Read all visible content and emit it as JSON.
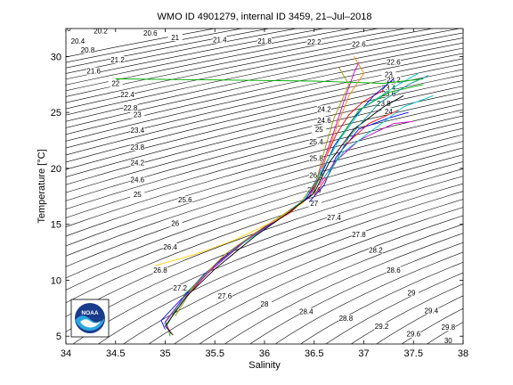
{
  "chart_data": {
    "type": "line",
    "title": "WMO ID 4901279, internal ID 3459, 21–Jul–2018",
    "xlabel": "Salinity",
    "ylabel": "Temperature [°C]",
    "xlim": [
      34,
      38
    ],
    "ylim": [
      4.3,
      32.5
    ],
    "xticks": [
      34,
      34.5,
      35,
      35.5,
      36,
      36.5,
      37,
      37.5,
      38
    ],
    "yticks": [
      5,
      10,
      15,
      20,
      25,
      30
    ],
    "grid": false,
    "legend": "none",
    "density_contours": {
      "levels": [
        20.2,
        20.4,
        20.6,
        20.8,
        21,
        21.2,
        21.4,
        21.6,
        21.8,
        22,
        22.2,
        22.4,
        22.6,
        22.8,
        23,
        23.2,
        23.4,
        23.6,
        23.8,
        24,
        24.2,
        24.4,
        24.6,
        24.8,
        25,
        25.2,
        25.4,
        25.6,
        25.8,
        26,
        26.2,
        26.4,
        26.6,
        26.8,
        27,
        27.2,
        27.4,
        27.6,
        27.8,
        28,
        28.2,
        28.4,
        28.6,
        28.8,
        29,
        29.2,
        29.4,
        29.6,
        29.8,
        30
      ],
      "labels": [
        {
          "text": "0",
          "s": 34.03,
          "t": 32.5
        },
        {
          "text": "20.2",
          "s": 34.35,
          "t": 32.3
        },
        {
          "text": "20.6",
          "s": 34.85,
          "t": 32.1
        },
        {
          "text": "21",
          "s": 35.1,
          "t": 31.7
        },
        {
          "text": "21.4",
          "s": 35.55,
          "t": 31.5
        },
        {
          "text": "21.8",
          "s": 36.0,
          "t": 31.4
        },
        {
          "text": "22.2",
          "s": 36.5,
          "t": 31.3
        },
        {
          "text": "22.6",
          "s": 36.95,
          "t": 31.1
        },
        {
          "text": "20.4",
          "s": 34.12,
          "t": 31.4
        },
        {
          "text": "20.8",
          "s": 34.22,
          "t": 30.6
        },
        {
          "text": "21.2",
          "s": 34.52,
          "t": 29.7
        },
        {
          "text": "21.6",
          "s": 34.28,
          "t": 28.7
        },
        {
          "text": "22",
          "s": 34.5,
          "t": 27.6
        },
        {
          "text": "22.4",
          "s": 34.62,
          "t": 26.6
        },
        {
          "text": "22.8",
          "s": 34.65,
          "t": 25.4
        },
        {
          "text": "23",
          "s": 34.72,
          "t": 24.8
        },
        {
          "text": "23.4",
          "s": 34.72,
          "t": 23.4
        },
        {
          "text": "23.8",
          "s": 34.72,
          "t": 21.9
        },
        {
          "text": "24.2",
          "s": 34.72,
          "t": 20.5
        },
        {
          "text": "24.6",
          "s": 34.72,
          "t": 19.0
        },
        {
          "text": "25",
          "s": 34.72,
          "t": 17.7
        },
        {
          "text": "25.6",
          "s": 35.2,
          "t": 17.2
        },
        {
          "text": "26",
          "s": 35.1,
          "t": 15.1
        },
        {
          "text": "26.4",
          "s": 35.05,
          "t": 13.0
        },
        {
          "text": "26.8",
          "s": 34.95,
          "t": 10.9
        },
        {
          "text": "27.2",
          "s": 35.15,
          "t": 9.3
        },
        {
          "text": "27.6",
          "s": 35.6,
          "t": 8.6
        },
        {
          "text": "28",
          "s": 36.0,
          "t": 7.9
        },
        {
          "text": "28.4",
          "s": 36.42,
          "t": 7.2
        },
        {
          "text": "28.8",
          "s": 36.82,
          "t": 6.6
        },
        {
          "text": "29.2",
          "s": 37.18,
          "t": 5.9
        },
        {
          "text": "29.6",
          "s": 37.5,
          "t": 5.2
        },
        {
          "text": "30",
          "s": 37.85,
          "t": 4.6
        },
        {
          "text": "29.8",
          "s": 37.85,
          "t": 5.8
        },
        {
          "text": "29.4",
          "s": 37.68,
          "t": 7.3
        },
        {
          "text": "29",
          "s": 37.48,
          "t": 8.9
        },
        {
          "text": "28.6",
          "s": 37.3,
          "t": 10.9
        },
        {
          "text": "28.2",
          "s": 37.12,
          "t": 12.7
        },
        {
          "text": "27.8",
          "s": 36.95,
          "t": 14.1
        },
        {
          "text": "27.4",
          "s": 36.7,
          "t": 15.6
        },
        {
          "text": "27",
          "s": 36.5,
          "t": 16.9
        },
        {
          "text": "26.6",
          "s": 36.5,
          "t": 18.1
        },
        {
          "text": "26.2",
          "s": 36.52,
          "t": 19.4
        },
        {
          "text": "25.8",
          "s": 36.52,
          "t": 20.9
        },
        {
          "text": "25.4",
          "s": 36.52,
          "t": 22.4
        },
        {
          "text": "25",
          "s": 36.55,
          "t": 23.5
        },
        {
          "text": "24.6",
          "s": 36.6,
          "t": 24.3
        },
        {
          "text": "24.2",
          "s": 36.6,
          "t": 25.3
        },
        {
          "text": "23.8",
          "s": 37.2,
          "t": 25.8
        },
        {
          "text": "23.4",
          "s": 37.25,
          "t": 27.2
        },
        {
          "text": "23",
          "s": 37.25,
          "t": 28.4
        },
        {
          "text": "23.6",
          "s": 37.25,
          "t": 26.7
        },
        {
          "text": "24",
          "s": 37.25,
          "t": 25.1
        },
        {
          "text": "22.6",
          "s": 37.3,
          "t": 29.5
        },
        {
          "text": "23.2",
          "s": 37.3,
          "t": 27.9
        }
      ]
    },
    "series": [
      {
        "color": "#ff0000",
        "points": [
          [
            35.06,
            5.2
          ],
          [
            35.0,
            6.2
          ],
          [
            35.12,
            7.6
          ],
          [
            35.28,
            9.2
          ],
          [
            35.55,
            11.8
          ],
          [
            35.9,
            14.2
          ],
          [
            36.25,
            16.0
          ],
          [
            36.45,
            17.5
          ],
          [
            36.55,
            19.0
          ],
          [
            36.62,
            21.0
          ],
          [
            36.72,
            23.0
          ],
          [
            36.85,
            24.8
          ],
          [
            37.0,
            26.0
          ],
          [
            37.2,
            27.0
          ]
        ]
      },
      {
        "color": "#0000ff",
        "points": [
          [
            35.0,
            5.6
          ],
          [
            34.96,
            6.4
          ],
          [
            35.15,
            8.2
          ],
          [
            35.4,
            10.6
          ],
          [
            35.75,
            13.2
          ],
          [
            36.15,
            15.6
          ],
          [
            36.42,
            17.3
          ],
          [
            36.58,
            19.6
          ],
          [
            36.7,
            22.0
          ],
          [
            36.9,
            24.5
          ],
          [
            37.1,
            26.5
          ],
          [
            37.3,
            28.0
          ]
        ]
      },
      {
        "color": "#00aa00",
        "points": [
          [
            35.05,
            5.0
          ],
          [
            35.02,
            6.0
          ],
          [
            35.2,
            8.8
          ],
          [
            35.5,
            11.2
          ],
          [
            35.85,
            13.8
          ],
          [
            36.2,
            15.8
          ],
          [
            36.48,
            17.6
          ],
          [
            36.6,
            20.2
          ],
          [
            36.78,
            23.0
          ],
          [
            36.95,
            25.2
          ],
          [
            37.25,
            26.8
          ],
          [
            37.6,
            27.5
          ]
        ]
      },
      {
        "color": "#00cccc",
        "points": [
          [
            34.98,
            6.0
          ],
          [
            35.1,
            7.4
          ],
          [
            35.35,
            10.0
          ],
          [
            35.7,
            12.8
          ],
          [
            36.1,
            15.2
          ],
          [
            36.4,
            17.2
          ],
          [
            36.55,
            19.4
          ],
          [
            36.75,
            22.5
          ],
          [
            37.0,
            25.5
          ],
          [
            37.35,
            27.5
          ],
          [
            37.55,
            28.5
          ]
        ]
      },
      {
        "color": "#cc00cc",
        "points": [
          [
            35.04,
            5.4
          ],
          [
            35.0,
            6.3
          ],
          [
            35.18,
            8.4
          ],
          [
            35.45,
            10.8
          ],
          [
            35.8,
            13.5
          ],
          [
            36.18,
            15.7
          ],
          [
            36.45,
            17.4
          ],
          [
            36.56,
            19.8
          ],
          [
            36.68,
            22.8
          ],
          [
            36.8,
            26.0
          ],
          [
            36.9,
            28.5
          ],
          [
            36.95,
            29.5
          ]
        ]
      },
      {
        "color": "#999900",
        "points": [
          [
            35.1,
            6.8
          ],
          [
            35.3,
            9.6
          ],
          [
            35.6,
            12.3
          ],
          [
            36.0,
            14.8
          ],
          [
            36.35,
            16.8
          ],
          [
            36.52,
            18.8
          ],
          [
            36.6,
            21.5
          ],
          [
            36.7,
            24.5
          ],
          [
            36.85,
            27.5
          ],
          [
            36.75,
            29.0
          ]
        ]
      },
      {
        "color": "#ffcc00",
        "points": [
          [
            34.9,
            11.3
          ],
          [
            35.3,
            12.3
          ],
          [
            35.7,
            13.6
          ],
          [
            36.1,
            15.3
          ],
          [
            36.4,
            17.0
          ]
        ]
      },
      {
        "color": "#000000",
        "points": [
          [
            35.08,
            5.1
          ],
          [
            35.0,
            5.9
          ],
          [
            35.22,
            8.6
          ],
          [
            35.5,
            11.0
          ],
          [
            35.9,
            13.9
          ],
          [
            36.25,
            16.1
          ],
          [
            36.5,
            17.8
          ],
          [
            36.65,
            20.5
          ],
          [
            36.9,
            23.5
          ],
          [
            37.2,
            25.5
          ],
          [
            37.4,
            26.5
          ]
        ]
      },
      {
        "color": "#00aa00",
        "points": [
          [
            34.5,
            28.0
          ],
          [
            35.5,
            27.9
          ],
          [
            36.5,
            27.8
          ],
          [
            37.2,
            27.6
          ],
          [
            37.6,
            28.0
          ]
        ]
      },
      {
        "color": "#0000ff",
        "points": [
          [
            36.45,
            17.0
          ],
          [
            36.6,
            18.5
          ],
          [
            36.72,
            21.0
          ],
          [
            36.95,
            23.5
          ],
          [
            37.25,
            24.5
          ],
          [
            37.45,
            25.0
          ]
        ]
      },
      {
        "color": "#ff0000",
        "points": [
          [
            36.5,
            17.6
          ],
          [
            36.65,
            19.5
          ],
          [
            36.8,
            22.0
          ],
          [
            37.05,
            24.0
          ],
          [
            37.35,
            25.2
          ]
        ]
      },
      {
        "color": "#cc00cc",
        "points": [
          [
            36.55,
            18.5
          ],
          [
            36.7,
            20.5
          ],
          [
            36.95,
            22.5
          ],
          [
            37.3,
            24.0
          ],
          [
            37.5,
            24.2
          ]
        ]
      },
      {
        "color": "#00cccc",
        "points": [
          [
            36.6,
            19.2
          ],
          [
            36.8,
            21.5
          ],
          [
            37.1,
            23.5
          ],
          [
            37.4,
            25.5
          ],
          [
            37.7,
            26.5
          ]
        ]
      },
      {
        "color": "#ff8800",
        "points": [
          [
            36.58,
            20.0
          ],
          [
            36.72,
            23.5
          ],
          [
            36.85,
            26.5
          ],
          [
            37.0,
            28.5
          ],
          [
            36.9,
            30.0
          ]
        ]
      },
      {
        "color": "#009999",
        "points": [
          [
            36.62,
            19.0
          ],
          [
            36.85,
            22.8
          ],
          [
            37.15,
            25.8
          ],
          [
            37.45,
            27.5
          ],
          [
            37.65,
            28.3
          ]
        ]
      }
    ]
  },
  "logo": {
    "name": "NOAA"
  }
}
